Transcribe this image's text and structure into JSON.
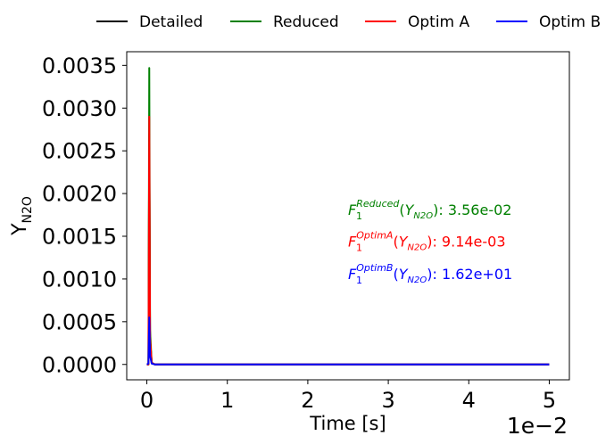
{
  "chart_data": {
    "type": "line",
    "title": "",
    "xlabel": "Time [s]",
    "ylabel": "Y",
    "ylabel_subscript": "N2O",
    "x_offset_label": "1e−2",
    "xlim": [
      -0.0025,
      0.0525
    ],
    "ylim": [
      -0.00018,
      0.00366
    ],
    "xticks": [
      0,
      0.01,
      0.02,
      0.03,
      0.04,
      0.05
    ],
    "xtick_labels": [
      "0",
      "1",
      "2",
      "3",
      "4",
      "5"
    ],
    "yticks": [
      0,
      0.0005,
      0.001,
      0.0015,
      0.002,
      0.0025,
      0.003,
      0.0035
    ],
    "ytick_labels": [
      "0.0000",
      "0.0005",
      "0.0010",
      "0.0015",
      "0.0020",
      "0.0025",
      "0.0030",
      "0.0035"
    ],
    "grid": false,
    "legend_position": "top",
    "series": [
      {
        "name": "Detailed",
        "color": "#000000",
        "x": [
          0,
          0.0002,
          0.0003,
          0.0004,
          0.0006,
          0.001,
          0.05
        ],
        "y": [
          0,
          0.0,
          0.0027,
          0.0003,
          2e-05,
          0,
          0
        ]
      },
      {
        "name": "Reduced",
        "color": "#008000",
        "x": [
          0,
          0.0002,
          0.0003,
          0.0004,
          0.0006,
          0.001,
          0.05
        ],
        "y": [
          0,
          0.0,
          0.00347,
          0.0004,
          2e-05,
          0,
          0
        ]
      },
      {
        "name": "Optim A",
        "color": "#ff0000",
        "x": [
          0,
          0.0002,
          0.0003,
          0.0004,
          0.0006,
          0.001,
          0.05
        ],
        "y": [
          0,
          0.0,
          0.0029,
          0.0003,
          2e-05,
          0,
          0
        ]
      },
      {
        "name": "Optim B",
        "color": "#0000ff",
        "x": [
          0,
          0.0002,
          0.0003,
          0.0004,
          0.0006,
          0.001,
          0.05
        ],
        "y": [
          0,
          1e-05,
          0.00055,
          0.0001,
          1e-05,
          0,
          0
        ]
      }
    ],
    "annotations": [
      {
        "sup": "Reduced",
        "value": "3.56e-02",
        "color": "#008000",
        "x": 0.025,
        "y": 0.00175
      },
      {
        "sup": "OptimA",
        "value": "9.14e-03",
        "color": "#ff0000",
        "x": 0.025,
        "y": 0.00138
      },
      {
        "sup": "OptimB",
        "value": "1.62e+01",
        "color": "#0000ff",
        "x": 0.025,
        "y": 0.001
      }
    ],
    "annotation_symbol": "F",
    "annotation_symbol_sub": "1",
    "annotation_arg": "Y",
    "annotation_arg_sub": "N2O"
  }
}
